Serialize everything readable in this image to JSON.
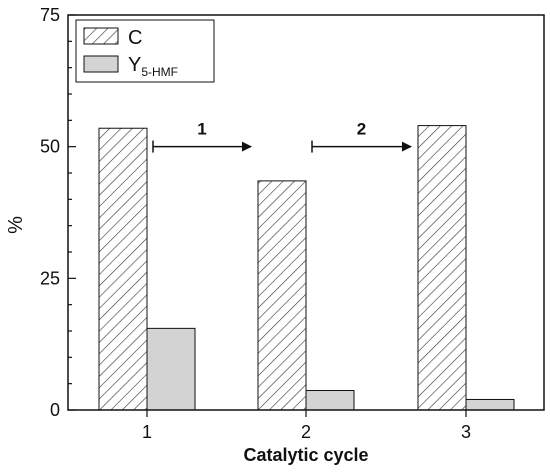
{
  "chart_data": {
    "type": "bar",
    "title": "",
    "xlabel": "Catalytic cycle",
    "ylabel": "%",
    "categories": [
      "1",
      "2",
      "3"
    ],
    "ylim": [
      0,
      75
    ],
    "yticks": [
      0,
      25,
      50,
      75
    ],
    "grid": false,
    "legend_position": "top-left",
    "series": [
      {
        "name": "C",
        "values": [
          53.5,
          43.5,
          54.0
        ],
        "fill": "hatched",
        "color": "#ffffff"
      },
      {
        "name": "Y",
        "name_sub": "5-HMF",
        "values": [
          15.5,
          3.7,
          2.0
        ],
        "fill": "solid",
        "color": "#d3d3d3"
      }
    ],
    "annotations": [
      {
        "label": "1",
        "from_category": "1",
        "to_category": "2",
        "y": 48.5
      },
      {
        "label": "2",
        "from_category": "2",
        "to_category": "3",
        "y": 48.5
      }
    ]
  }
}
